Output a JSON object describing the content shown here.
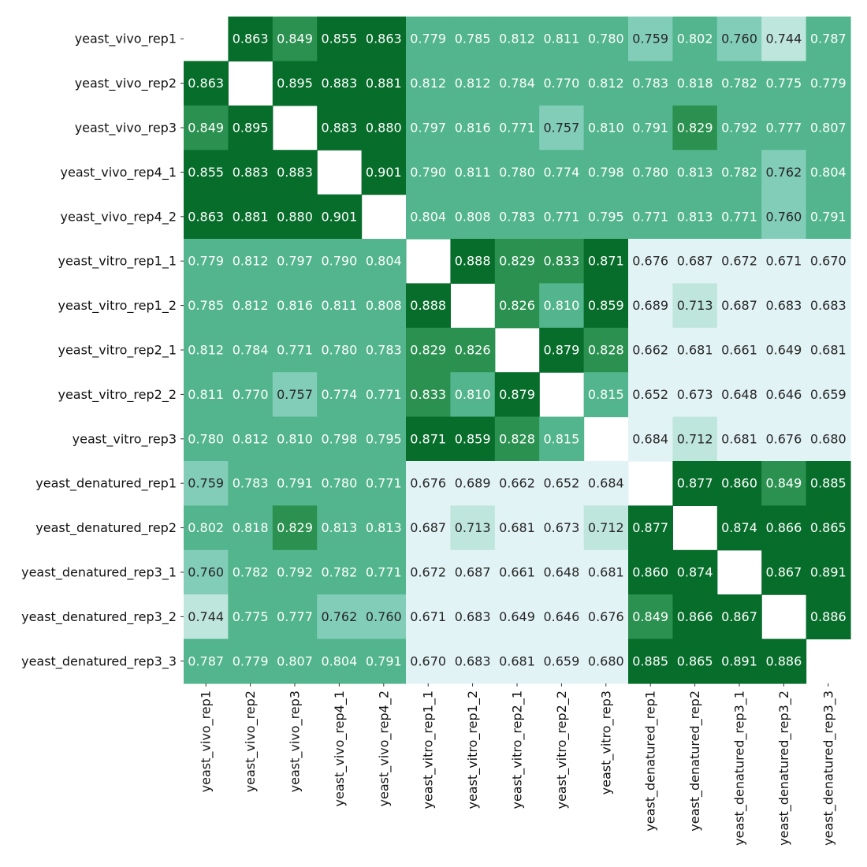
{
  "chart_data": {
    "type": "heatmap",
    "title": "",
    "xlabel": "",
    "ylabel": "",
    "grid": false,
    "colorbar": false,
    "diagonal": "blank",
    "value_format": "0.000",
    "labels": [
      "yeast_vivo_rep1",
      "yeast_vivo_rep2",
      "yeast_vivo_rep3",
      "yeast_vivo_rep4_1",
      "yeast_vivo_rep4_2",
      "yeast_vitro_rep1_1",
      "yeast_vitro_rep1_2",
      "yeast_vitro_rep2_1",
      "yeast_vitro_rep2_2",
      "yeast_vitro_rep3",
      "yeast_denatured_rep1",
      "yeast_denatured_rep2",
      "yeast_denatured_rep3_1",
      "yeast_denatured_rep3_2",
      "yeast_denatured_rep3_3"
    ],
    "values": [
      [
        null,
        0.863,
        0.849,
        0.855,
        0.863,
        0.779,
        0.785,
        0.812,
        0.811,
        0.78,
        0.759,
        0.802,
        0.76,
        0.744,
        0.787
      ],
      [
        0.863,
        null,
        0.895,
        0.883,
        0.881,
        0.812,
        0.812,
        0.784,
        0.77,
        0.812,
        0.783,
        0.818,
        0.782,
        0.775,
        0.779
      ],
      [
        0.849,
        0.895,
        null,
        0.883,
        0.88,
        0.797,
        0.816,
        0.771,
        0.757,
        0.81,
        0.791,
        0.829,
        0.792,
        0.777,
        0.807
      ],
      [
        0.855,
        0.883,
        0.883,
        null,
        0.901,
        0.79,
        0.811,
        0.78,
        0.774,
        0.798,
        0.78,
        0.813,
        0.782,
        0.762,
        0.804
      ],
      [
        0.863,
        0.881,
        0.88,
        0.901,
        null,
        0.804,
        0.808,
        0.783,
        0.771,
        0.795,
        0.771,
        0.813,
        0.771,
        0.76,
        0.791
      ],
      [
        0.779,
        0.812,
        0.797,
        0.79,
        0.804,
        null,
        0.888,
        0.829,
        0.833,
        0.871,
        0.676,
        0.687,
        0.672,
        0.671,
        0.67
      ],
      [
        0.785,
        0.812,
        0.816,
        0.811,
        0.808,
        0.888,
        null,
        0.826,
        0.81,
        0.859,
        0.689,
        0.713,
        0.687,
        0.683,
        0.683
      ],
      [
        0.812,
        0.784,
        0.771,
        0.78,
        0.783,
        0.829,
        0.826,
        null,
        0.879,
        0.828,
        0.662,
        0.681,
        0.661,
        0.649,
        0.681
      ],
      [
        0.811,
        0.77,
        0.757,
        0.774,
        0.771,
        0.833,
        0.81,
        0.879,
        null,
        0.815,
        0.652,
        0.673,
        0.648,
        0.646,
        0.659
      ],
      [
        0.78,
        0.812,
        0.81,
        0.798,
        0.795,
        0.871,
        0.859,
        0.828,
        0.815,
        null,
        0.684,
        0.712,
        0.681,
        0.676,
        0.68
      ],
      [
        0.759,
        0.783,
        0.791,
        0.78,
        0.771,
        0.676,
        0.689,
        0.662,
        0.652,
        0.684,
        null,
        0.877,
        0.86,
        0.849,
        0.885
      ],
      [
        0.802,
        0.818,
        0.829,
        0.813,
        0.813,
        0.687,
        0.713,
        0.681,
        0.673,
        0.712,
        0.877,
        null,
        0.874,
        0.866,
        0.865
      ],
      [
        0.76,
        0.782,
        0.792,
        0.782,
        0.771,
        0.672,
        0.687,
        0.661,
        0.648,
        0.681,
        0.86,
        0.874,
        null,
        0.867,
        0.891
      ],
      [
        0.744,
        0.775,
        0.777,
        0.762,
        0.76,
        0.671,
        0.683,
        0.649,
        0.646,
        0.676,
        0.849,
        0.866,
        0.867,
        null,
        0.886
      ],
      [
        0.787,
        0.779,
        0.807,
        0.804,
        0.791,
        0.67,
        0.683,
        0.681,
        0.659,
        0.68,
        0.885,
        0.865,
        0.891,
        0.886,
        null
      ]
    ],
    "color_bins": [
      {
        "min": 0.0,
        "color": "#e2f3f6",
        "text_color": "#262626"
      },
      {
        "min": 0.7,
        "color": "#bfe6dd",
        "text_color": "#262626"
      },
      {
        "min": 0.75,
        "color": "#82cdb8",
        "text_color": "#262626"
      },
      {
        "min": 0.77,
        "color": "#52b58d",
        "text_color": "#ffffff"
      },
      {
        "min": 0.82,
        "color": "#2b9150",
        "text_color": "#ffffff"
      },
      {
        "min": 0.85,
        "color": "#076d2b",
        "text_color": "#ffffff"
      }
    ]
  }
}
